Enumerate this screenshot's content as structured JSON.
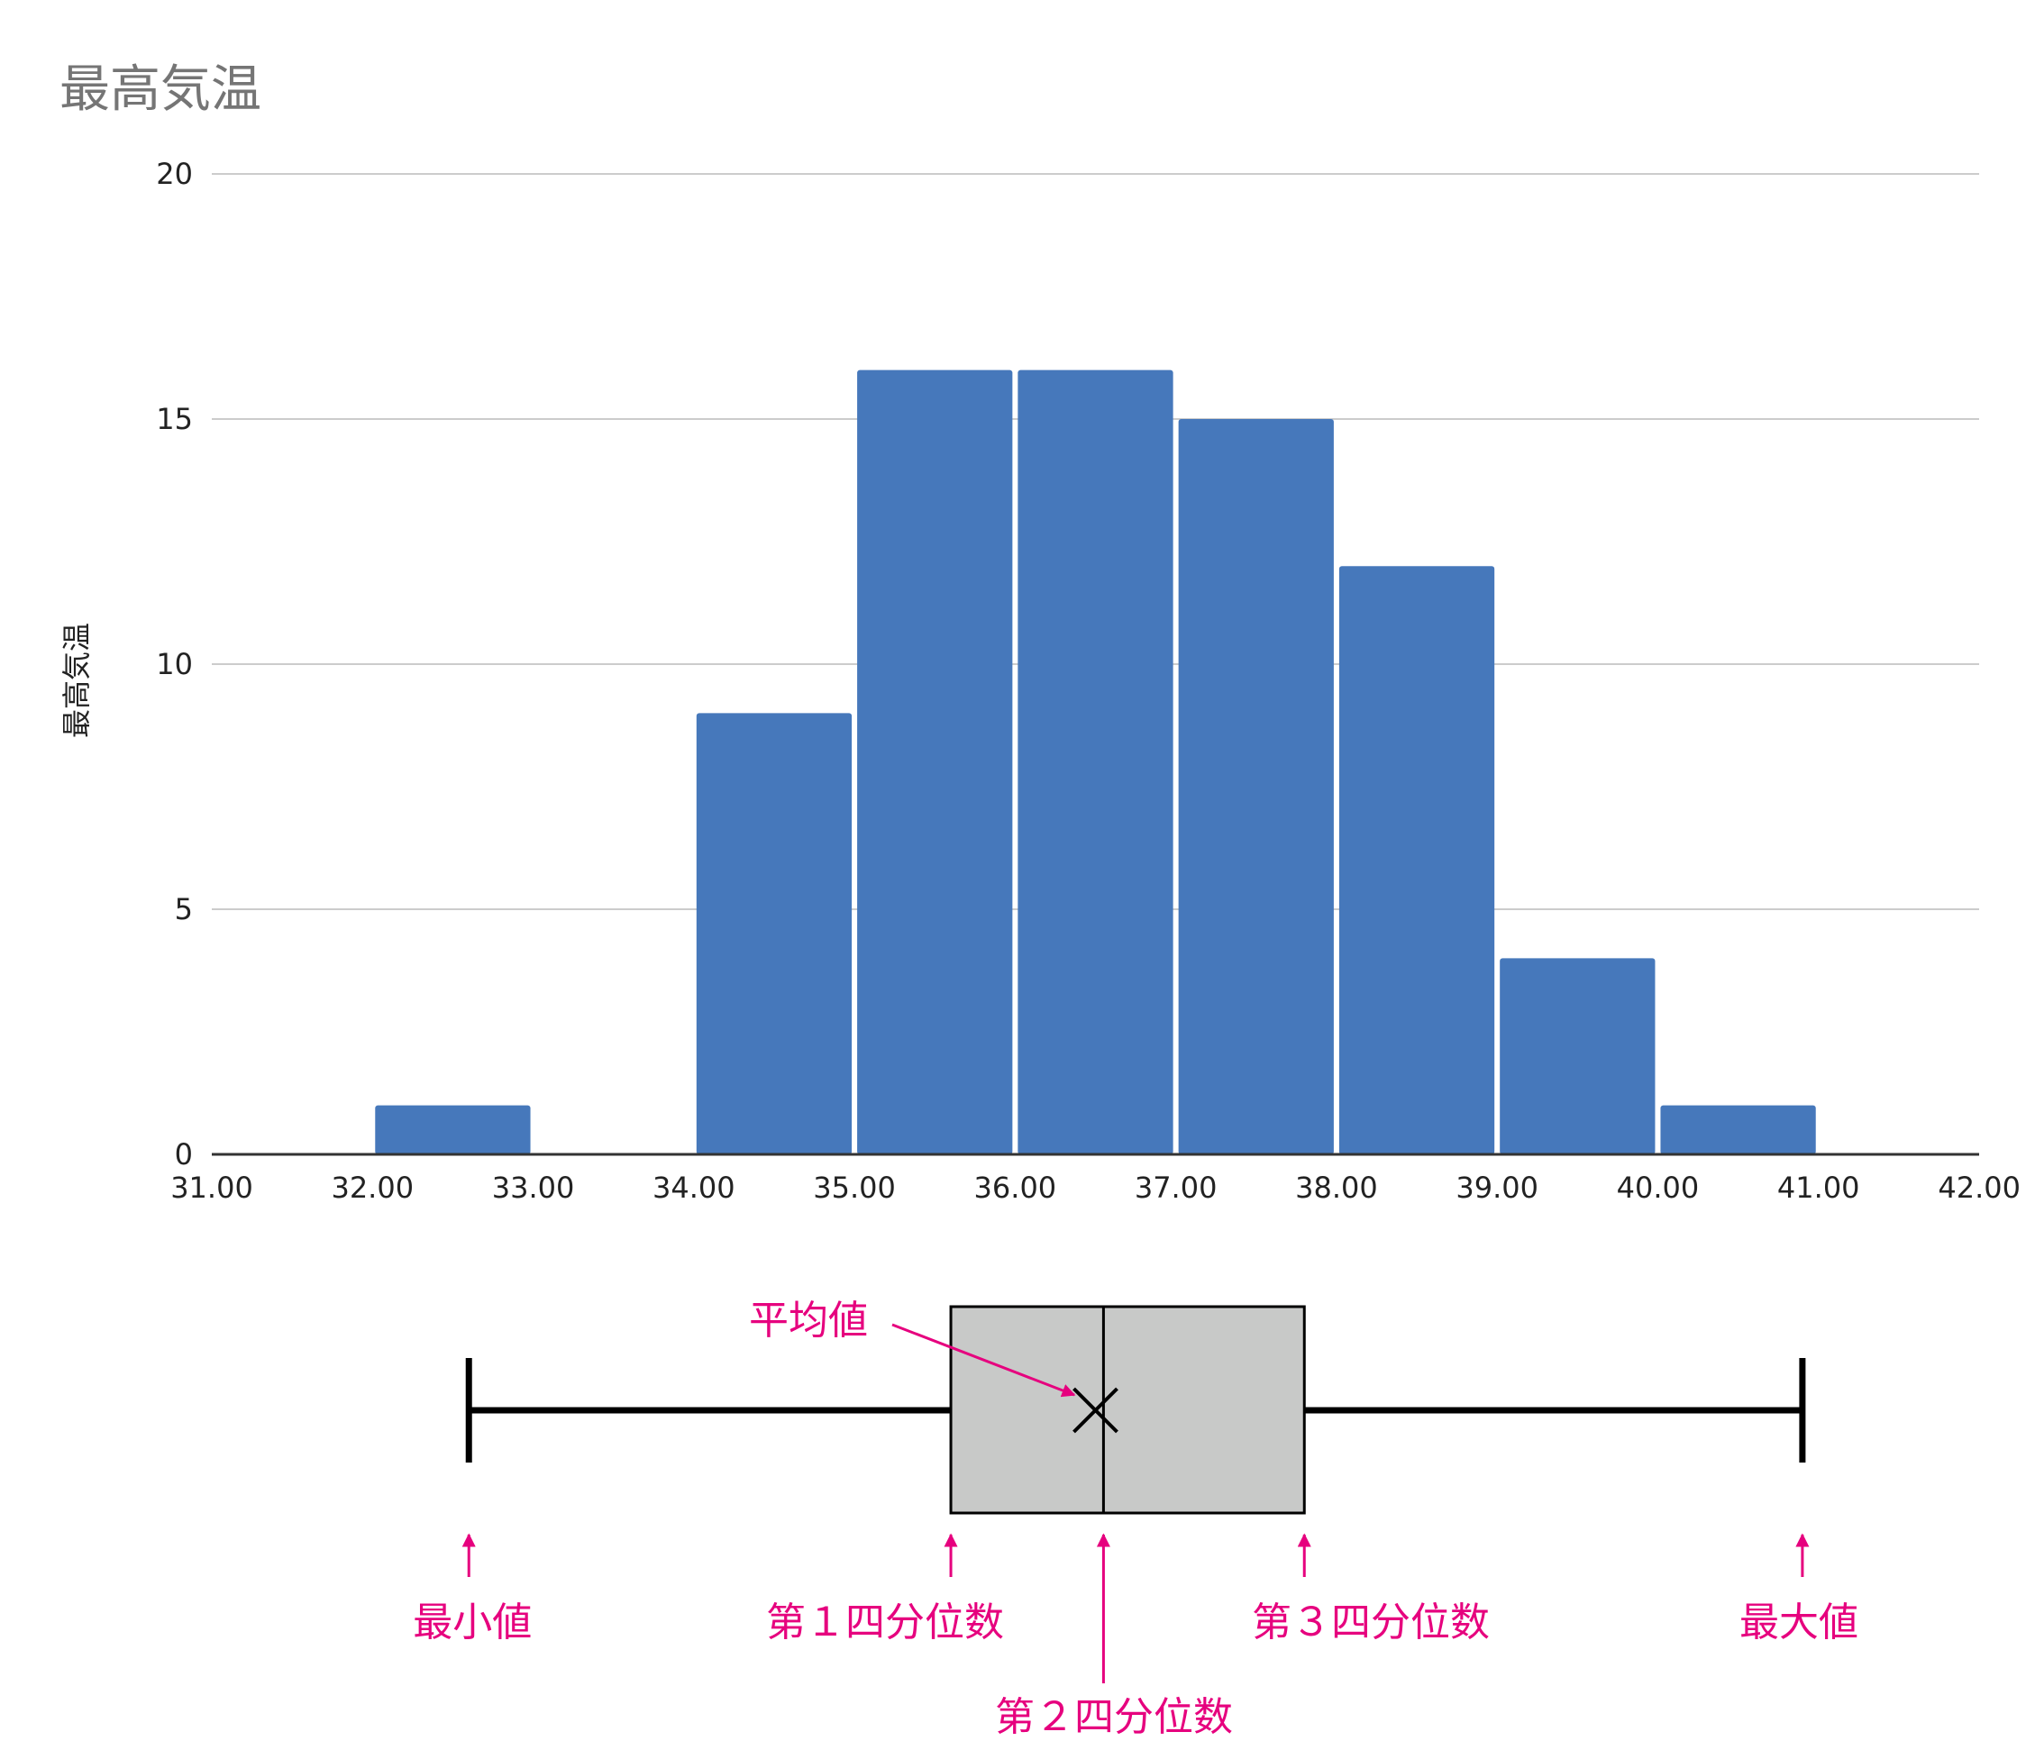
{
  "chart_data": [
    {
      "type": "bar",
      "title": "最高気温",
      "ylabel": "最高気温",
      "xlabel": "",
      "bins": [
        {
          "x0": 32,
          "x1": 33,
          "count": 1
        },
        {
          "x0": 34,
          "x1": 35,
          "count": 9
        },
        {
          "x0": 35,
          "x1": 36,
          "count": 16
        },
        {
          "x0": 36,
          "x1": 37,
          "count": 16
        },
        {
          "x0": 37,
          "x1": 38,
          "count": 15
        },
        {
          "x0": 38,
          "x1": 39,
          "count": 12
        },
        {
          "x0": 39,
          "x1": 40,
          "count": 4
        },
        {
          "x0": 40,
          "x1": 41,
          "count": 1
        }
      ],
      "xlim": [
        31,
        42
      ],
      "ylim": [
        0,
        20
      ],
      "x_ticks": [
        "31.00",
        "32.00",
        "33.00",
        "34.00",
        "35.00",
        "36.00",
        "37.00",
        "38.00",
        "39.00",
        "40.00",
        "41.00",
        "42.00"
      ],
      "y_ticks": [
        "0",
        "5",
        "10",
        "15",
        "20"
      ],
      "bar_color": "#4678bb",
      "grid": true
    },
    {
      "type": "box",
      "min": 32.6,
      "q1": 35.6,
      "median": 36.55,
      "mean": 36.5,
      "q3": 37.8,
      "max": 40.9,
      "box_color": "#c8c9c8",
      "annotation_color": "#e6007e",
      "annotations": {
        "mean": "平均値",
        "min": "最小値",
        "q1": "第１四分位数",
        "median": "第２四分位数",
        "q3": "第３四分位数",
        "max": "最大値"
      }
    }
  ]
}
